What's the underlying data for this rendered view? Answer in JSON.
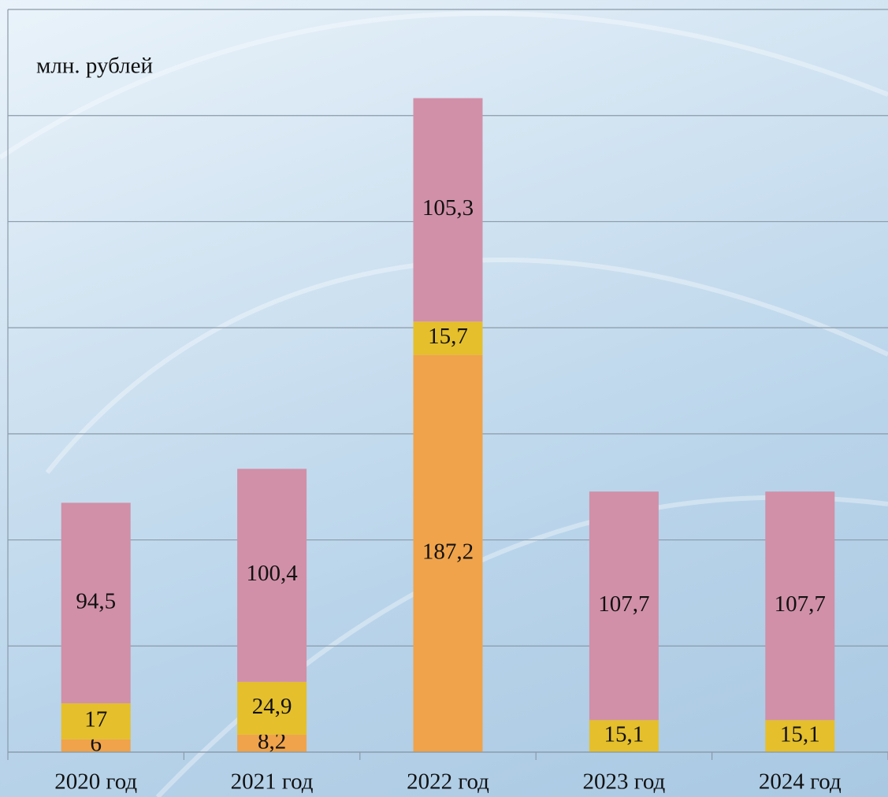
{
  "chart_data": {
    "type": "stacked-bar",
    "y_label": "млн. рублей",
    "categories": [
      "2020 год",
      "2021 год",
      "2022 год",
      "2023 год",
      "2024 год"
    ],
    "series": [
      {
        "color": "#f0a34a",
        "values": [
          6,
          8.2,
          187.2,
          null,
          null
        ],
        "value_labels": [
          "6",
          "8,2",
          "187,2",
          null,
          null
        ]
      },
      {
        "color": "#e5bf2c",
        "values": [
          17,
          24.9,
          15.7,
          15.1,
          15.1
        ],
        "value_labels": [
          "17",
          "24,9",
          "15,7",
          "15,1",
          "15,1"
        ]
      },
      {
        "color": "#d190a8",
        "values": [
          94.5,
          100.4,
          105.3,
          107.7,
          107.7
        ],
        "value_labels": [
          "94,5",
          "100,4",
          "105,3",
          "107,7",
          "107,7"
        ]
      }
    ],
    "ylim": [
      0,
      350
    ],
    "yticks": [
      0,
      50,
      100,
      150,
      200,
      250,
      300,
      350
    ],
    "grid": true
  }
}
